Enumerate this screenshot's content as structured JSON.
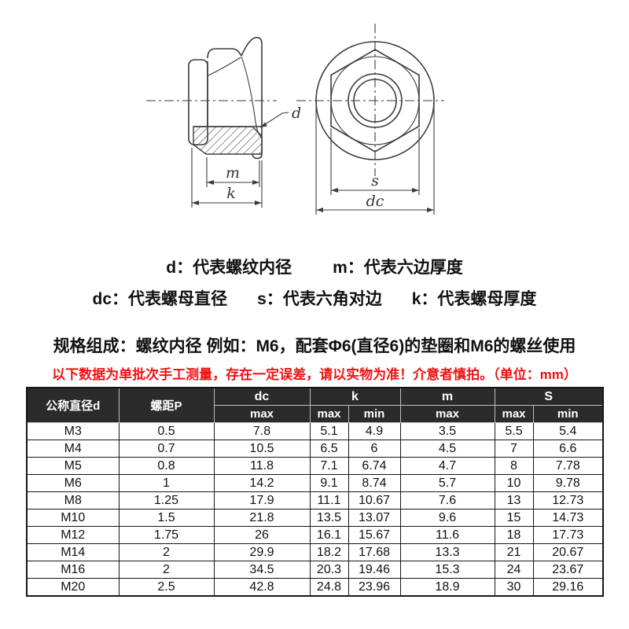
{
  "drawing": {
    "labels": {
      "d": "d",
      "m": "m",
      "k": "k",
      "s": "s",
      "dc": "dc"
    }
  },
  "legend": {
    "line1": [
      "d：代表螺纹内径",
      "m：代表六边厚度"
    ],
    "line2": [
      "dc：代表螺母直径",
      "s：代表六角对边",
      "k：代表螺母厚度"
    ]
  },
  "notes": {
    "spec": "规格组成：螺纹内径 例如：M6，配套Φ6(直径6)的垫圈和M6的螺丝使用",
    "warning": "以下数据为单批次手工测量，存在一定误差，请以实物为准！介意者慎拍。（单位：mm）"
  },
  "table": {
    "header": {
      "nominal_diameter": "公称直径d",
      "pitch": "螺距P",
      "dc": "dc",
      "k": "k",
      "m": "m",
      "s": "S",
      "max": "max",
      "min": "min"
    },
    "rows": [
      [
        "M3",
        "0.5",
        "7.8",
        "5.1",
        "4.9",
        "3.5",
        "5.5",
        "5.4"
      ],
      [
        "M4",
        "0.7",
        "10.5",
        "6.5",
        "6",
        "4.5",
        "7",
        "6.6"
      ],
      [
        "M5",
        "0.8",
        "11.8",
        "7.1",
        "6.74",
        "4.7",
        "8",
        "7.78"
      ],
      [
        "M6",
        "1",
        "14.2",
        "9.1",
        "8.74",
        "5.7",
        "10",
        "9.78"
      ],
      [
        "M8",
        "1.25",
        "17.9",
        "11.1",
        "10.67",
        "7.6",
        "13",
        "12.73"
      ],
      [
        "M10",
        "1.5",
        "21.8",
        "13.5",
        "13.07",
        "9.6",
        "15",
        "14.73"
      ],
      [
        "M12",
        "1.75",
        "26",
        "16.1",
        "15.67",
        "11.6",
        "18",
        "17.73"
      ],
      [
        "M14",
        "2",
        "29.9",
        "18.2",
        "17.68",
        "13.3",
        "21",
        "20.67"
      ],
      [
        "M16",
        "2",
        "34.5",
        "20.3",
        "19.46",
        "15.3",
        "24",
        "23.67"
      ],
      [
        "M20",
        "2.5",
        "42.8",
        "24.8",
        "23.96",
        "18.9",
        "30",
        "29.16"
      ]
    ]
  },
  "colors": {
    "header_bg": "#2b2b2b",
    "header_text": "#ffffff",
    "warning_red": "#ee1111",
    "drawing_line": "#3c3c3c",
    "body_text": "#111111"
  }
}
